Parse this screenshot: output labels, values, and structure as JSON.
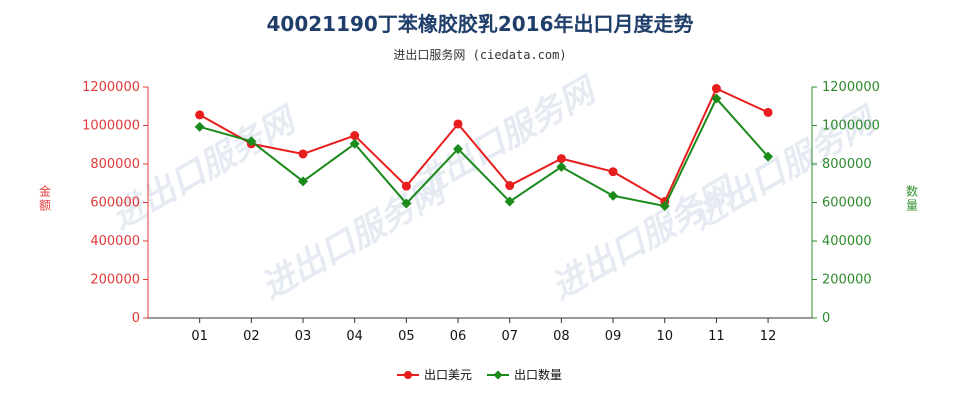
{
  "title": "40021190丁苯橡胶胶乳2016年出口月度走势",
  "subtitle": "进出口服务网 (ciedata.com)",
  "watermark": "进出口服务网",
  "colors": {
    "usd": "#e81e1e",
    "qty": "#1a8a1a",
    "left_axis": "#e03a3a",
    "right_axis": "#2e8b2e"
  },
  "chart_data": {
    "type": "line",
    "categories": [
      "01",
      "02",
      "03",
      "04",
      "05",
      "06",
      "07",
      "08",
      "09",
      "10",
      "11",
      "12"
    ],
    "series": [
      {
        "name": "出口美元",
        "axis": "left",
        "values": [
          1055000,
          905000,
          852000,
          948000,
          685000,
          1008000,
          688000,
          828000,
          760000,
          605000,
          1192000,
          1068000
        ]
      },
      {
        "name": "出口数量",
        "axis": "right",
        "values": [
          993000,
          918000,
          710000,
          905000,
          595000,
          878000,
          605000,
          785000,
          635000,
          582000,
          1140000,
          838000
        ]
      }
    ],
    "ylabel_left": "金额",
    "ylabel_right": "数量",
    "ylim": [
      0,
      1200000
    ],
    "yticks": [
      "0",
      "200000",
      "400000",
      "600000",
      "800000",
      "1000000",
      "1200000"
    ],
    "legend_position": "bottom-center"
  }
}
